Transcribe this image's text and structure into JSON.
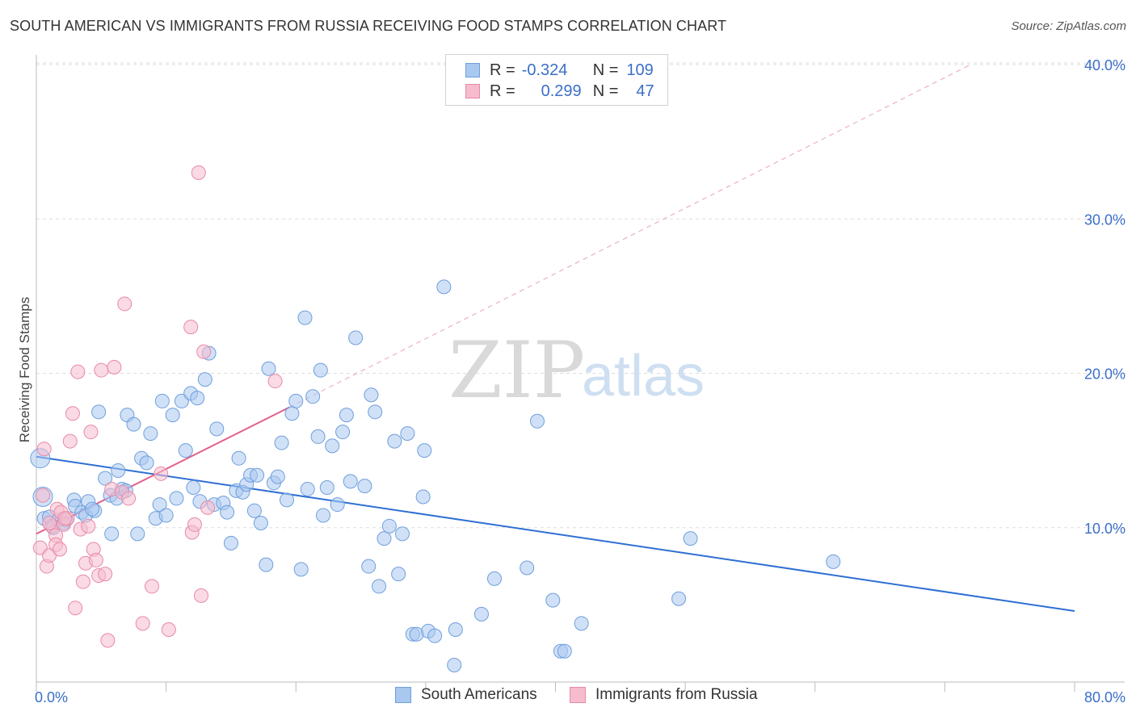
{
  "title": "SOUTH AMERICAN VS IMMIGRANTS FROM RUSSIA RECEIVING FOOD STAMPS CORRELATION CHART",
  "source": "Source: ZipAtlas.com",
  "watermark": {
    "zip": "ZIP",
    "atlas": "atlas"
  },
  "legend": {
    "rows": [
      {
        "r_label": "R =",
        "r_value": "-0.324",
        "n_label": "N =",
        "n_value": "109",
        "color": "#a9c8f0",
        "border": "#6f9fdc"
      },
      {
        "r_label": "R =",
        "r_value": "0.299",
        "n_label": "N =",
        "n_value": "47",
        "color": "#f6bccd",
        "border": "#e88aa7"
      }
    ]
  },
  "bottom_legend": [
    {
      "label": "South Americans",
      "color": "#a9c8f0",
      "border": "#6f9fdc"
    },
    {
      "label": "Immigrants from Russia",
      "color": "#f6bccd",
      "border": "#e88aa7"
    }
  ],
  "chart_data": {
    "type": "scatter",
    "title": "SOUTH AMERICAN VS IMMIGRANTS FROM RUSSIA RECEIVING FOOD STAMPS CORRELATION CHART",
    "xlabel": "",
    "ylabel": "Receiving Food Stamps",
    "xlim": [
      0,
      80
    ],
    "ylim": [
      0,
      40
    ],
    "x_tick_labels": [
      "0.0%",
      "80.0%"
    ],
    "y_ticks": [
      10,
      20,
      30,
      40
    ],
    "y_tick_labels": [
      "10.0%",
      "20.0%",
      "30.0%",
      "40.0%"
    ],
    "series": [
      {
        "name": "South Americans",
        "color": "#6f9fdc",
        "fill": "#a9c8f0",
        "trend": {
          "x": [
            0,
            80
          ],
          "y": [
            14.6,
            4.6
          ],
          "color": "#2e6fd3"
        },
        "points": [
          [
            0.3,
            14.5
          ],
          [
            0.5,
            12.0
          ],
          [
            0.6,
            10.6
          ],
          [
            1.0,
            10.7
          ],
          [
            1.3,
            10.0
          ],
          [
            1.7,
            10.5
          ],
          [
            2.1,
            10.3
          ],
          [
            2.3,
            10.5
          ],
          [
            2.9,
            11.8
          ],
          [
            3.0,
            11.4
          ],
          [
            3.5,
            11.0
          ],
          [
            3.8,
            10.8
          ],
          [
            4.0,
            11.7
          ],
          [
            4.5,
            11.1
          ],
          [
            4.8,
            17.5
          ],
          [
            5.3,
            13.2
          ],
          [
            5.7,
            12.1
          ],
          [
            5.8,
            9.6
          ],
          [
            6.2,
            11.9
          ],
          [
            6.3,
            13.7
          ],
          [
            6.6,
            12.5
          ],
          [
            7.0,
            17.3
          ],
          [
            7.5,
            16.7
          ],
          [
            7.8,
            9.6
          ],
          [
            8.1,
            14.5
          ],
          [
            8.5,
            14.2
          ],
          [
            8.8,
            16.1
          ],
          [
            9.2,
            10.6
          ],
          [
            9.5,
            11.5
          ],
          [
            9.7,
            18.2
          ],
          [
            10.0,
            10.8
          ],
          [
            10.5,
            17.3
          ],
          [
            10.8,
            11.9
          ],
          [
            11.2,
            18.2
          ],
          [
            11.5,
            15.0
          ],
          [
            11.9,
            18.7
          ],
          [
            12.1,
            12.6
          ],
          [
            12.4,
            18.4
          ],
          [
            12.6,
            11.7
          ],
          [
            13.0,
            19.6
          ],
          [
            13.3,
            21.3
          ],
          [
            13.7,
            11.5
          ],
          [
            13.9,
            16.4
          ],
          [
            14.4,
            11.6
          ],
          [
            14.7,
            11.0
          ],
          [
            15.0,
            9.0
          ],
          [
            15.4,
            12.4
          ],
          [
            15.6,
            14.5
          ],
          [
            15.9,
            12.3
          ],
          [
            16.2,
            12.8
          ],
          [
            16.5,
            13.4
          ],
          [
            16.8,
            11.1
          ],
          [
            17.0,
            13.4
          ],
          [
            17.3,
            10.3
          ],
          [
            17.7,
            7.6
          ],
          [
            17.9,
            20.3
          ],
          [
            18.3,
            12.9
          ],
          [
            18.6,
            13.3
          ],
          [
            18.9,
            15.5
          ],
          [
            19.3,
            11.8
          ],
          [
            19.7,
            17.4
          ],
          [
            20.0,
            18.2
          ],
          [
            20.4,
            7.3
          ],
          [
            20.7,
            23.6
          ],
          [
            20.9,
            12.5
          ],
          [
            21.3,
            18.5
          ],
          [
            21.7,
            15.9
          ],
          [
            21.9,
            20.2
          ],
          [
            22.1,
            10.8
          ],
          [
            22.4,
            12.6
          ],
          [
            22.8,
            15.3
          ],
          [
            23.2,
            11.5
          ],
          [
            23.6,
            16.2
          ],
          [
            23.9,
            17.3
          ],
          [
            24.2,
            13.0
          ],
          [
            24.6,
            22.3
          ],
          [
            25.3,
            12.7
          ],
          [
            25.6,
            7.5
          ],
          [
            25.8,
            18.6
          ],
          [
            26.1,
            17.5
          ],
          [
            26.4,
            6.2
          ],
          [
            26.8,
            9.3
          ],
          [
            27.2,
            10.1
          ],
          [
            27.6,
            15.6
          ],
          [
            27.9,
            7.0
          ],
          [
            28.2,
            9.6
          ],
          [
            28.6,
            16.1
          ],
          [
            29.0,
            3.1
          ],
          [
            29.3,
            3.1
          ],
          [
            29.8,
            12.0
          ],
          [
            29.9,
            15.0
          ],
          [
            30.2,
            3.3
          ],
          [
            30.7,
            3.0
          ],
          [
            31.4,
            25.6
          ],
          [
            32.3,
            3.4
          ],
          [
            32.2,
            1.1
          ],
          [
            34.3,
            4.4
          ],
          [
            35.3,
            6.7
          ],
          [
            37.8,
            7.4
          ],
          [
            38.6,
            16.9
          ],
          [
            39.8,
            5.3
          ],
          [
            40.4,
            2.0
          ],
          [
            40.7,
            2.0
          ],
          [
            42.0,
            3.8
          ],
          [
            49.5,
            5.4
          ],
          [
            50.4,
            9.3
          ],
          [
            61.4,
            7.8
          ],
          [
            6.9,
            12.4
          ],
          [
            4.3,
            11.2
          ]
        ]
      },
      {
        "name": "Immigrants from Russia",
        "color": "#e88aa7",
        "fill": "#f6bccd",
        "trend": {
          "x": [
            0,
            19.5
          ],
          "y": [
            9.6,
            17.8
          ],
          "color": "#e0608c",
          "extended_to": [
            72,
            40
          ]
        },
        "points": [
          [
            0.3,
            8.7
          ],
          [
            0.5,
            12.1
          ],
          [
            0.6,
            15.1
          ],
          [
            0.8,
            7.5
          ],
          [
            1.0,
            8.2
          ],
          [
            1.2,
            10.1
          ],
          [
            1.5,
            9.5
          ],
          [
            1.5,
            8.9
          ],
          [
            1.6,
            11.2
          ],
          [
            1.8,
            8.6
          ],
          [
            1.9,
            11.0
          ],
          [
            2.1,
            10.2
          ],
          [
            2.4,
            10.6
          ],
          [
            2.6,
            15.6
          ],
          [
            2.8,
            17.4
          ],
          [
            3.0,
            4.8
          ],
          [
            3.2,
            20.1
          ],
          [
            3.4,
            9.9
          ],
          [
            3.6,
            6.5
          ],
          [
            3.8,
            7.7
          ],
          [
            4.0,
            10.1
          ],
          [
            4.2,
            16.2
          ],
          [
            4.4,
            8.6
          ],
          [
            4.6,
            7.9
          ],
          [
            4.8,
            6.9
          ],
          [
            5.0,
            20.2
          ],
          [
            5.3,
            7.0
          ],
          [
            5.5,
            2.7
          ],
          [
            5.8,
            12.5
          ],
          [
            6.0,
            20.4
          ],
          [
            6.6,
            12.3
          ],
          [
            6.8,
            24.5
          ],
          [
            7.1,
            11.9
          ],
          [
            8.2,
            3.8
          ],
          [
            8.9,
            6.2
          ],
          [
            9.6,
            13.5
          ],
          [
            10.2,
            3.4
          ],
          [
            11.9,
            23.0
          ],
          [
            12.0,
            9.7
          ],
          [
            12.2,
            10.2
          ],
          [
            12.5,
            33.0
          ],
          [
            12.7,
            5.6
          ],
          [
            12.9,
            21.4
          ],
          [
            13.2,
            11.3
          ],
          [
            18.4,
            19.5
          ],
          [
            2.2,
            10.6
          ],
          [
            1.0,
            10.3
          ]
        ]
      }
    ]
  }
}
